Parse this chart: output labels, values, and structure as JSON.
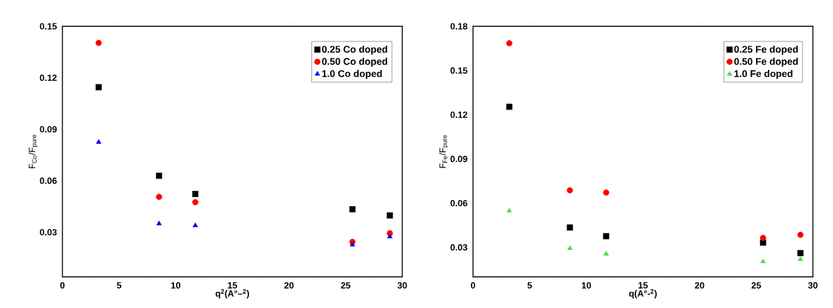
{
  "chart_data": [
    {
      "type": "scatter",
      "xlabel": "q$^{2}$(A°–$^{2}$)",
      "ylabel": "F$_{Co}$/F$_{pure}$",
      "x": [
        3.2,
        8.53,
        11.73,
        25.6,
        28.9
      ],
      "xlim": [
        0,
        30
      ],
      "xticks": [
        0,
        5,
        10,
        15,
        20,
        25,
        30
      ],
      "ylim": [
        0.004,
        0.15
      ],
      "yticks": [
        0.03,
        0.06,
        0.09,
        0.12,
        0.15
      ],
      "legend": "top right",
      "grid": false,
      "series": [
        {
          "name": "0.25 Co doped",
          "color": "#000000",
          "marker": "square",
          "values": [
            0.1145,
            0.0629,
            0.0523,
            0.0434,
            0.0398
          ]
        },
        {
          "name": "0.50 Co doped",
          "color": "#ff0000",
          "marker": "circle",
          "values": [
            0.1403,
            0.0506,
            0.0475,
            0.0244,
            0.0294
          ]
        },
        {
          "name": "1.0 Co doped",
          "color": "#0000ff",
          "marker": "triangle",
          "values": [
            0.0825,
            0.035,
            0.0339,
            0.0227,
            0.0274
          ]
        }
      ]
    },
    {
      "type": "scatter",
      "xlabel": "q(A°-$^{2}$)",
      "ylabel": "F$_{Fe}$/F$_{pure}$",
      "x": [
        3.2,
        8.55,
        11.75,
        25.6,
        28.9
      ],
      "xlim": [
        0,
        30
      ],
      "xticks": [
        0,
        5,
        10,
        15,
        20,
        25,
        30
      ],
      "ylim": [
        0.01,
        0.18
      ],
      "yticks": [
        0.03,
        0.06,
        0.09,
        0.12,
        0.15,
        0.18
      ],
      "legend": "top right",
      "grid": false,
      "series": [
        {
          "name": "0.25 Fe doped",
          "color": "#000000",
          "marker": "square",
          "values": [
            0.1254,
            0.0435,
            0.0376,
            0.0332,
            0.0261
          ]
        },
        {
          "name": "0.50 Fe doped",
          "color": "#ff0000",
          "marker": "circle",
          "values": [
            0.1685,
            0.0687,
            0.0672,
            0.0364,
            0.0385
          ]
        },
        {
          "name": "1.0 Fe doped",
          "color": "#4cdd4c",
          "marker": "triangle",
          "values": [
            0.0548,
            0.0293,
            0.0256,
            0.0204,
            0.0219
          ]
        }
      ]
    }
  ]
}
